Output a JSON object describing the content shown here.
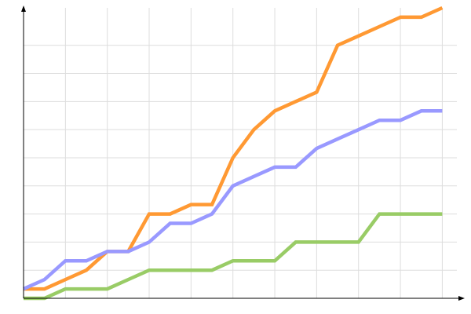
{
  "chart_data": {
    "type": "line",
    "title": "",
    "xlabel": "",
    "ylabel": "",
    "x": [
      0,
      1,
      2,
      3,
      4,
      5,
      6,
      7,
      8,
      9,
      10,
      11,
      12,
      13,
      14,
      15,
      16,
      17,
      18,
      19,
      20
    ],
    "xlim": [
      0,
      20.7
    ],
    "ylim": [
      0,
      31
    ],
    "grid": true,
    "x_grid_step": 2,
    "y_grid_step": 3,
    "series": [
      {
        "color": "#ff9933",
        "values": [
          1,
          1,
          2,
          3,
          5,
          5,
          9,
          9,
          10,
          10,
          15,
          18,
          20,
          21,
          22,
          27,
          28,
          29,
          30,
          30,
          31
        ]
      },
      {
        "color": "#9999ff",
        "values": [
          1,
          2,
          4,
          4,
          5,
          5,
          6,
          8,
          8,
          9,
          12,
          13,
          14,
          14,
          16,
          17,
          18,
          19,
          19,
          20,
          20
        ]
      },
      {
        "color": "#99cc66",
        "values": [
          0,
          0,
          1,
          1,
          1,
          2,
          3,
          3,
          3,
          3,
          4,
          4,
          4,
          6,
          6,
          6,
          6,
          9,
          9,
          9,
          9
        ]
      }
    ],
    "colors": {
      "grid": "#dddddd",
      "axis": "#000000"
    }
  }
}
